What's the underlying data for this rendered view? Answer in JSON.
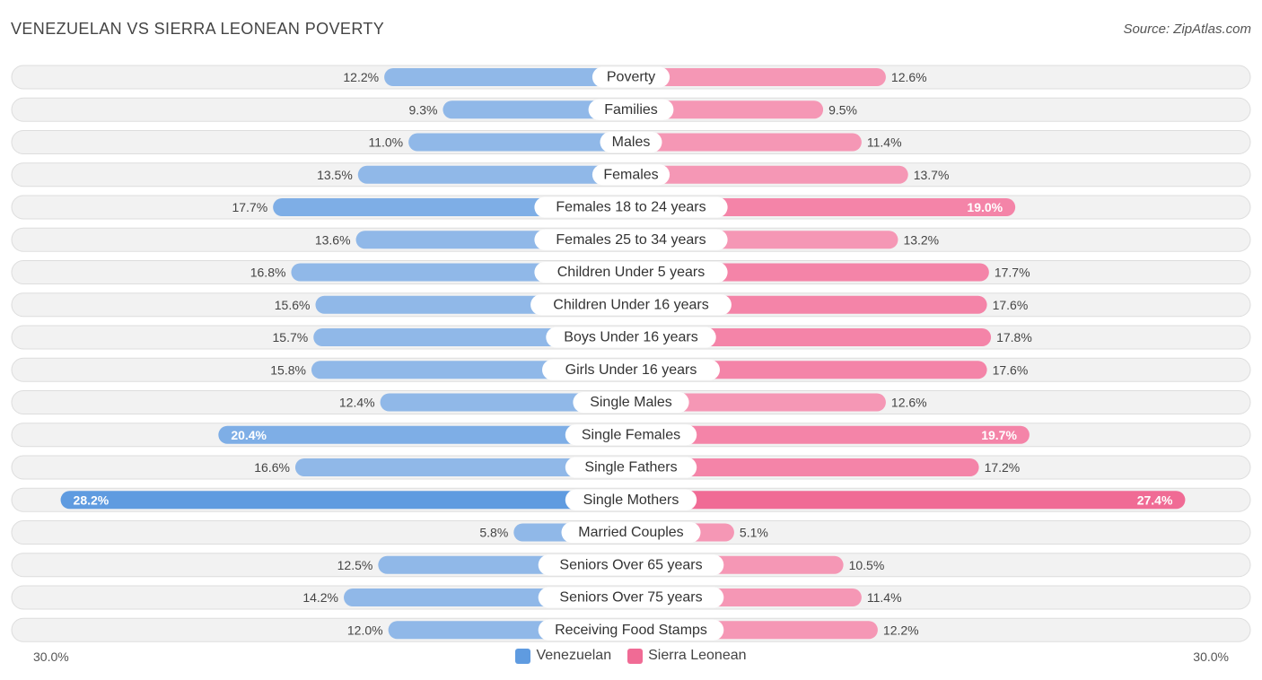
{
  "title": "VENEZUELAN VS SIERRA LEONEAN POVERTY",
  "source": "Source: ZipAtlas.com",
  "colors": {
    "left_bar": "#90b8e8",
    "left_bar_strong": "#5f9be0",
    "right_bar": "#f597b5",
    "right_bar_strong": "#f06b95"
  },
  "chart_data": {
    "type": "bar",
    "orientation": "horizontal-diverging",
    "title": "VENEZUELAN VS SIERRA LEONEAN POVERTY",
    "xlim": [
      -30,
      30
    ],
    "axis_left_label": "30.0%",
    "axis_right_label": "30.0%",
    "categories": [
      "Poverty",
      "Families",
      "Males",
      "Females",
      "Females 18 to 24 years",
      "Females 25 to 34 years",
      "Children Under 5 years",
      "Children Under 16 years",
      "Boys Under 16 years",
      "Girls Under 16 years",
      "Single Males",
      "Single Females",
      "Single Fathers",
      "Single Mothers",
      "Married Couples",
      "Seniors Over 65 years",
      "Seniors Over 75 years",
      "Receiving Food Stamps"
    ],
    "series": [
      {
        "name": "Venezuelan",
        "color": "#5f9be0",
        "values": [
          12.2,
          9.3,
          11.0,
          13.5,
          17.7,
          13.6,
          16.8,
          15.6,
          15.7,
          15.8,
          12.4,
          20.4,
          16.6,
          28.2,
          5.8,
          12.5,
          14.2,
          12.0
        ],
        "labels": [
          "12.2%",
          "9.3%",
          "11.0%",
          "13.5%",
          "17.7%",
          "13.6%",
          "16.8%",
          "15.6%",
          "15.7%",
          "15.8%",
          "12.4%",
          "20.4%",
          "16.6%",
          "28.2%",
          "5.8%",
          "12.5%",
          "14.2%",
          "12.0%"
        ]
      },
      {
        "name": "Sierra Leonean",
        "color": "#f06b95",
        "values": [
          12.6,
          9.5,
          11.4,
          13.7,
          19.0,
          13.2,
          17.7,
          17.6,
          17.8,
          17.6,
          12.6,
          19.7,
          17.2,
          27.4,
          5.1,
          10.5,
          11.4,
          12.2
        ],
        "labels": [
          "12.6%",
          "9.5%",
          "11.4%",
          "13.7%",
          "19.0%",
          "13.2%",
          "17.7%",
          "17.6%",
          "17.8%",
          "17.6%",
          "12.6%",
          "19.7%",
          "17.2%",
          "27.4%",
          "5.1%",
          "10.5%",
          "11.4%",
          "12.2%"
        ]
      }
    ],
    "legend": [
      "Venezuelan",
      "Sierra Leonean"
    ]
  }
}
